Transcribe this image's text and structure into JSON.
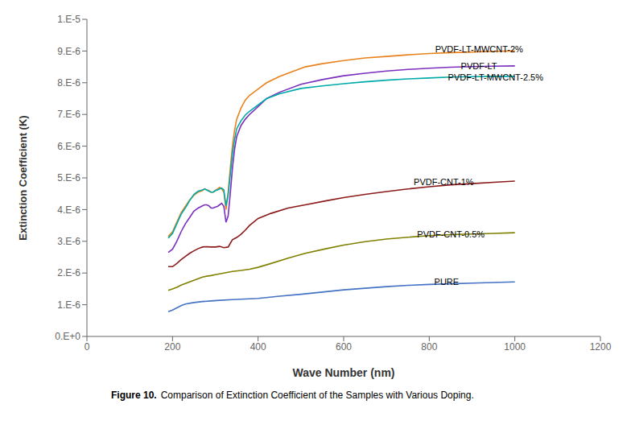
{
  "chart_data": {
    "type": "line",
    "x_label": "Wave Number (nm)",
    "y_label": "Extinction Coefficient (K)",
    "caption_bold": "Figure 10.",
    "caption": "Comparison of Extinction Coefficient of the Samples with Various Doping.",
    "xlim": [
      0,
      1200
    ],
    "ylim": [
      0,
      1e-05
    ],
    "xticks": [
      0,
      200,
      400,
      600,
      800,
      1000,
      1200
    ],
    "yticks": [
      {
        "value": 0,
        "label": "0.E+0"
      },
      {
        "value": 1e-06,
        "label": "1.E-6"
      },
      {
        "value": 2e-06,
        "label": "2.E-6"
      },
      {
        "value": 3e-06,
        "label": "3.E-6"
      },
      {
        "value": 4e-06,
        "label": "4.E-6"
      },
      {
        "value": 5e-06,
        "label": "5.E-6"
      },
      {
        "value": 6e-06,
        "label": "6.E-6"
      },
      {
        "value": 7e-06,
        "label": "7.E-6"
      },
      {
        "value": 8e-06,
        "label": "8.E-6"
      },
      {
        "value": 9e-06,
        "label": "9.E-6"
      },
      {
        "value": 1e-05,
        "label": "1.E-5"
      }
    ],
    "grid": false,
    "annotations": [
      {
        "text": "PVDF-LT-MWCNT-2%",
        "x": 810,
        "y": 9.05e-06
      },
      {
        "text": "PVDF-LT",
        "x": 870,
        "y": 8.52e-06
      },
      {
        "text": "PVDF-LT-MWCNT-2.5%",
        "x": 840,
        "y": 8.18e-06
      },
      {
        "text": "PVDF-CNT-1%",
        "x": 760,
        "y": 4.88e-06
      },
      {
        "text": "PVDF-CNT-0.5%",
        "x": 768,
        "y": 3.22e-06
      },
      {
        "text": "PURE",
        "x": 808,
        "y": 1.72e-06
      }
    ],
    "series": [
      {
        "color": "#E8821E",
        "x": [
          190,
          200,
          210,
          220,
          230,
          240,
          250,
          260,
          270,
          275,
          280,
          285,
          290,
          295,
          300,
          305,
          310,
          315,
          320,
          325,
          330,
          335,
          340,
          345,
          350,
          360,
          370,
          380,
          390,
          400,
          420,
          450,
          480,
          510,
          550,
          600,
          650,
          700,
          750,
          800,
          850,
          900,
          950,
          1000
        ],
        "values": [
          3.15e-06,
          3.3e-06,
          3.6e-06,
          3.9e-06,
          4.1e-06,
          4.3e-06,
          4.45e-06,
          4.55e-06,
          4.6e-06,
          4.65e-06,
          4.62e-06,
          4.6e-06,
          4.55e-06,
          4.55e-06,
          4.6e-06,
          4.65e-06,
          4.7e-06,
          4.65e-06,
          4.55e-06,
          4e-06,
          4.55e-06,
          5.3e-06,
          6e-06,
          6.5e-06,
          6.85e-06,
          7.2e-06,
          7.45e-06,
          7.6e-06,
          7.7e-06,
          7.8e-06,
          8e-06,
          8.2e-06,
          8.35e-06,
          8.5e-06,
          8.6e-06,
          8.7e-06,
          8.78e-06,
          8.83e-06,
          8.88e-06,
          8.92e-06,
          8.95e-06,
          8.97e-06,
          8.99e-06,
          9e-06
        ]
      },
      {
        "color": "#7B2FBE",
        "x": [
          190,
          200,
          210,
          220,
          230,
          240,
          250,
          260,
          270,
          275,
          280,
          285,
          290,
          295,
          300,
          305,
          310,
          315,
          320,
          325,
          330,
          335,
          340,
          345,
          350,
          360,
          370,
          380,
          390,
          400,
          420,
          450,
          500,
          550,
          600,
          650,
          700,
          750,
          800,
          850,
          900,
          950,
          1000
        ],
        "values": [
          2.65e-06,
          2.75e-06,
          3e-06,
          3.3e-06,
          3.55e-06,
          3.75e-06,
          3.95e-06,
          4.05e-06,
          4.12e-06,
          4.15e-06,
          4.15e-06,
          4.12e-06,
          4.05e-06,
          4.05e-06,
          4.08e-06,
          4.1e-06,
          4.15e-06,
          4.2e-06,
          4.1e-06,
          3.6e-06,
          3.8e-06,
          4.5e-06,
          5.3e-06,
          5.9e-06,
          6.3e-06,
          6.65e-06,
          6.85e-06,
          7e-06,
          7.12e-06,
          7.25e-06,
          7.5e-06,
          7.7e-06,
          7.95e-06,
          8.1e-06,
          8.22e-06,
          8.3e-06,
          8.37e-06,
          8.42e-06,
          8.46e-06,
          8.49e-06,
          8.51e-06,
          8.52e-06,
          8.53e-06
        ]
      },
      {
        "color": "#00AAAA",
        "x": [
          190,
          200,
          210,
          220,
          230,
          240,
          250,
          260,
          270,
          275,
          280,
          285,
          290,
          295,
          300,
          305,
          310,
          315,
          320,
          325,
          330,
          335,
          340,
          345,
          350,
          360,
          370,
          380,
          390,
          400,
          420,
          450,
          500,
          550,
          600,
          650,
          700,
          750,
          800,
          850,
          900,
          950,
          1000
        ],
        "values": [
          3.1e-06,
          3.25e-06,
          3.55e-06,
          3.85e-06,
          4.05e-06,
          4.28e-06,
          4.48e-06,
          4.58e-06,
          4.62e-06,
          4.65e-06,
          4.62e-06,
          4.58e-06,
          4.55e-06,
          4.55e-06,
          4.6e-06,
          4.62e-06,
          4.65e-06,
          4.68e-06,
          4.62e-06,
          4.12e-06,
          4.45e-06,
          5.1e-06,
          5.75e-06,
          6.2e-06,
          6.55e-06,
          6.8e-06,
          6.98e-06,
          7.1e-06,
          7.2e-06,
          7.3e-06,
          7.5e-06,
          7.65e-06,
          7.82e-06,
          7.9e-06,
          7.97e-06,
          8.03e-06,
          8.08e-06,
          8.12e-06,
          8.15e-06,
          8.18e-06,
          8.19e-06,
          8.2e-06,
          8.2e-06
        ]
      },
      {
        "color": "#8B1A1A",
        "x": [
          190,
          200,
          210,
          220,
          230,
          240,
          250,
          260,
          270,
          280,
          290,
          300,
          310,
          320,
          330,
          340,
          350,
          360,
          370,
          380,
          400,
          430,
          470,
          510,
          560,
          600,
          650,
          700,
          750,
          800,
          850,
          900,
          950,
          1000
        ],
        "values": [
          2.2e-06,
          2.2e-06,
          2.3e-06,
          2.42e-06,
          2.52e-06,
          2.62e-06,
          2.7e-06,
          2.77e-06,
          2.82e-06,
          2.83e-06,
          2.82e-06,
          2.82e-06,
          2.84e-06,
          2.8e-06,
          2.82e-06,
          3.05e-06,
          3.12e-06,
          3.22e-06,
          3.35e-06,
          3.5e-06,
          3.72e-06,
          3.88e-06,
          4.05e-06,
          4.15e-06,
          4.28e-06,
          4.38e-06,
          4.48e-06,
          4.57e-06,
          4.65e-06,
          4.72e-06,
          4.78e-06,
          4.82e-06,
          4.86e-06,
          4.9e-06
        ]
      },
      {
        "color": "#808000",
        "x": [
          190,
          200,
          210,
          220,
          230,
          240,
          250,
          260,
          270,
          280,
          290,
          300,
          320,
          340,
          360,
          380,
          400,
          430,
          470,
          510,
          560,
          600,
          650,
          700,
          750,
          800,
          850,
          900,
          950,
          1000
        ],
        "values": [
          1.45e-06,
          1.5e-06,
          1.55e-06,
          1.62e-06,
          1.67e-06,
          1.72e-06,
          1.77e-06,
          1.82e-06,
          1.87e-06,
          1.9e-06,
          1.92e-06,
          1.95e-06,
          2e-06,
          2.05e-06,
          2.08e-06,
          2.12e-06,
          2.18e-06,
          2.3e-06,
          2.47e-06,
          2.62e-06,
          2.77e-06,
          2.88e-06,
          2.99e-06,
          3.07e-06,
          3.13e-06,
          3.18e-06,
          3.21e-06,
          3.23e-06,
          3.25e-06,
          3.27e-06
        ]
      },
      {
        "color": "#4472C4",
        "x": [
          190,
          200,
          210,
          220,
          230,
          250,
          270,
          290,
          310,
          340,
          370,
          400,
          450,
          500,
          550,
          600,
          650,
          700,
          750,
          800,
          850,
          900,
          950,
          1000
        ],
        "values": [
          7.8e-07,
          8.3e-07,
          9e-07,
          9.7e-07,
          1.02e-06,
          1.07e-06,
          1.1e-06,
          1.12e-06,
          1.14e-06,
          1.16e-06,
          1.18e-06,
          1.2e-06,
          1.27e-06,
          1.33e-06,
          1.4e-06,
          1.47e-06,
          1.52e-06,
          1.57e-06,
          1.61e-06,
          1.64e-06,
          1.66e-06,
          1.68e-06,
          1.7e-06,
          1.72e-06
        ]
      }
    ]
  }
}
